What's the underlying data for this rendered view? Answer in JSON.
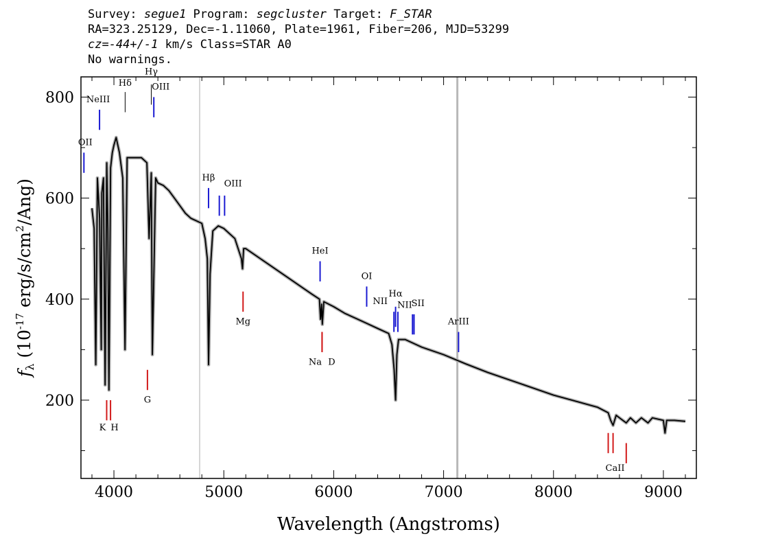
{
  "header": {
    "survey_label": "Survey: ",
    "survey": "segue1",
    "program_label": " Program: ",
    "program": "segcluster",
    "target_label": " Target: ",
    "target": "F_STAR",
    "line2": "RA=323.25129, Dec=-1.11060, Plate=1961, Fiber=206, MJD=53299",
    "cz": "cz=-44+/-1",
    "line3_rest": " km/s Class=STAR A0",
    "line4": "No warnings."
  },
  "chart_data": {
    "type": "line",
    "xlabel": "Wavelength (Angstroms)",
    "ylabel": "f_λ (10^-17 erg/s/cm²/Ang)",
    "ylabel_parts": {
      "f": "f",
      "sub": "λ",
      "a": " (10",
      "exp1": "-17",
      "b": " erg/s/cm",
      "exp2": "2",
      "c": "/Ang)"
    },
    "xlim": [
      3700,
      9300
    ],
    "ylim": [
      45,
      840
    ],
    "xticks": [
      4000,
      5000,
      6000,
      7000,
      8000,
      9000
    ],
    "xtick_labels": [
      "4000",
      "5000",
      "6000",
      "7000",
      "8000",
      "9000"
    ],
    "yticks": [
      200,
      400,
      600,
      800
    ],
    "ytick_labels": [
      "200",
      "400",
      "600",
      "800"
    ],
    "spectrum": {
      "color": "#000000",
      "x": [
        3800,
        3820,
        3835,
        3850,
        3870,
        3885,
        3890,
        3905,
        3920,
        3935,
        3945,
        3955,
        3970,
        3985,
        4000,
        4020,
        4050,
        4080,
        4101,
        4120,
        4150,
        4200,
        4250,
        4300,
        4320,
        4340,
        4350,
        4380,
        4400,
        4450,
        4500,
        4550,
        4600,
        4650,
        4700,
        4750,
        4800,
        4830,
        4850,
        4861,
        4875,
        4900,
        4950,
        5000,
        5100,
        5160,
        5170,
        5180,
        5200,
        5300,
        5400,
        5500,
        5600,
        5700,
        5800,
        5870,
        5880,
        5890,
        5896,
        5910,
        6000,
        6100,
        6200,
        6300,
        6400,
        6500,
        6530,
        6550,
        6563,
        6575,
        6590,
        6650,
        6800,
        7000,
        7200,
        7400,
        7600,
        7800,
        8000,
        8200,
        8400,
        8498,
        8520,
        8542,
        8570,
        8600,
        8662,
        8700,
        8750,
        8800,
        8860,
        8900,
        9000,
        9015,
        9030,
        9100,
        9200
      ],
      "y": [
        580,
        540,
        270,
        640,
        560,
        300,
        610,
        640,
        230,
        670,
        540,
        220,
        660,
        690,
        705,
        720,
        690,
        640,
        300,
        680,
        680,
        680,
        680,
        670,
        520,
        650,
        290,
        640,
        630,
        625,
        615,
        600,
        585,
        570,
        560,
        555,
        550,
        520,
        480,
        270,
        450,
        535,
        545,
        540,
        520,
        480,
        460,
        500,
        500,
        485,
        470,
        455,
        440,
        425,
        410,
        400,
        360,
        390,
        350,
        395,
        385,
        372,
        362,
        352,
        342,
        332,
        310,
        260,
        200,
        290,
        320,
        320,
        305,
        290,
        272,
        255,
        240,
        225,
        210,
        198,
        186,
        175,
        160,
        150,
        170,
        165,
        155,
        165,
        155,
        165,
        155,
        165,
        160,
        135,
        160,
        160,
        158
      ]
    },
    "sky_lines": [
      {
        "x": 4780,
        "color": "#c8c8c8"
      },
      {
        "x": 7125,
        "color": "#b8b8b8"
      }
    ],
    "emission_lines": [
      {
        "label": "OII",
        "x": 3727,
        "y0": 650,
        "y1": 690,
        "label_y": 705,
        "color": "#1a1ad2"
      },
      {
        "label": "NeIII",
        "x": 3869,
        "y0": 735,
        "y1": 775,
        "label_y": 790,
        "color": "#1a1ad2"
      },
      {
        "label": "Hδ",
        "x": 4102,
        "y0": 770,
        "y1": 810,
        "label_y": 822,
        "color": "#000000"
      },
      {
        "label": "Hγ",
        "x": 4340,
        "y0": 785,
        "y1": 825,
        "label_y": 845,
        "color": "#000000"
      },
      {
        "label": "OIII",
        "x": 4363,
        "y0": 760,
        "y1": 800,
        "label_y": 815,
        "color": "#1a1ad2"
      },
      {
        "label": "Hβ",
        "x": 4861,
        "y0": 580,
        "y1": 620,
        "label_y": 635,
        "color": "#1a1ad2"
      },
      {
        "label": "OIII",
        "x": 4959,
        "y0": 565,
        "y1": 605,
        "label_y": 623,
        "color": "#1a1ad2"
      },
      {
        "label": "",
        "x": 5007,
        "y0": 565,
        "y1": 605,
        "label_y": 0,
        "color": "#1a1ad2"
      },
      {
        "label": "HeI",
        "x": 5876,
        "y0": 435,
        "y1": 475,
        "label_y": 490,
        "color": "#1a1ad2"
      },
      {
        "label": "OI",
        "x": 6300,
        "y0": 385,
        "y1": 425,
        "label_y": 440,
        "color": "#1a1ad2"
      },
      {
        "label": "NII",
        "x": 6548,
        "y0": 335,
        "y1": 375,
        "label_y": 390,
        "color": "#1a1ad2"
      },
      {
        "label": "Hα",
        "x": 6563,
        "y0": 345,
        "y1": 385,
        "label_y": 405,
        "color": "#1a1ad2"
      },
      {
        "label": "NII",
        "x": 6584,
        "y0": 335,
        "y1": 375,
        "label_y": 383,
        "color": "#1a1ad2"
      },
      {
        "label": "SII",
        "x": 6717,
        "y0": 330,
        "y1": 370,
        "label_y": 386,
        "color": "#1a1ad2"
      },
      {
        "label": "",
        "x": 6731,
        "y0": 330,
        "y1": 370,
        "label_y": 0,
        "color": "#1a1ad2"
      },
      {
        "label": "ArIII",
        "x": 7136,
        "y0": 295,
        "y1": 335,
        "label_y": 350,
        "color": "#1a1ad2"
      }
    ],
    "absorption_lines": [
      {
        "label": "K",
        "x": 3934,
        "y0": 160,
        "y1": 200,
        "label_y": 140,
        "color": "#d21a1a"
      },
      {
        "label": "H",
        "x": 3969,
        "y0": 160,
        "y1": 200,
        "label_y": 140,
        "color": "#d21a1a"
      },
      {
        "label": "G",
        "x": 4305,
        "y0": 220,
        "y1": 260,
        "label_y": 195,
        "color": "#d21a1a"
      },
      {
        "label": "Mg",
        "x": 5175,
        "y0": 375,
        "y1": 415,
        "label_y": 350,
        "color": "#d21a1a"
      },
      {
        "label": "Na",
        "x": 5894,
        "y0": 295,
        "y1": 335,
        "label_y": 270,
        "color": "#d21a1a"
      },
      {
        "label": "D",
        "x": 5894,
        "y0": 295,
        "y1": 335,
        "label_y": 270,
        "color": "#d21a1a"
      },
      {
        "label": "CaII",
        "x": 8498,
        "y0": 95,
        "y1": 135,
        "label_y": 60,
        "color": "#d21a1a"
      },
      {
        "label": "",
        "x": 8542,
        "y0": 95,
        "y1": 135,
        "label_y": 0,
        "color": "#d21a1a"
      },
      {
        "label": "",
        "x": 8662,
        "y0": 75,
        "y1": 115,
        "label_y": 0,
        "color": "#d21a1a"
      }
    ]
  }
}
